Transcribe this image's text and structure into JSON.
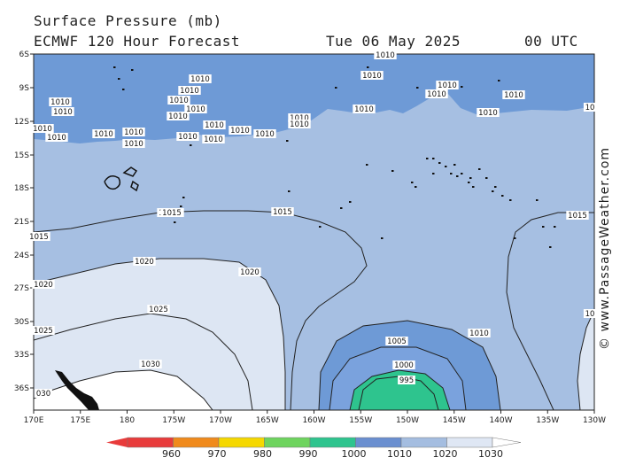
{
  "header": {
    "title": "Surface Pressure (mb)",
    "model": "ECMWF 120 Hour Forecast",
    "date": "Tue 06 May 2025",
    "time": "00 UTC"
  },
  "watermark": "© www.PassageWeather.com",
  "axes": {
    "lat_labels": [
      "6S",
      "9S",
      "12S",
      "15S",
      "18S",
      "21S",
      "24S",
      "27S",
      "30S",
      "33S",
      "36S"
    ],
    "lon_labels": [
      "170E",
      "175E",
      "180",
      "175W",
      "170W",
      "165W",
      "160W",
      "155W",
      "150W",
      "145W",
      "140W",
      "135W",
      "130W"
    ]
  },
  "legend": {
    "labels": [
      "960",
      "970",
      "980",
      "990",
      "1000",
      "1010",
      "1020",
      "1030"
    ],
    "colors": [
      "#e83b3b",
      "#f08a1c",
      "#f5d800",
      "#6ed45e",
      "#2ec48e",
      "#6a8fd0",
      "#a4bde0",
      "#dfe7f4"
    ]
  },
  "map": {
    "colors": {
      "lt1010": "#6e9ad6",
      "b1010_1015": "#a6bfe2",
      "b1015_1020": "#a6bfe2",
      "b1020_1030": "#dde6f3",
      "gt1030": "#ffffff",
      "lt1000": "#7aa2dd",
      "lt995": "#2ec48e",
      "land": "#111111"
    },
    "contour_labels": [
      "1010",
      "1010",
      "1010",
      "1010",
      "1010",
      "1010",
      "1010",
      "1010",
      "1010",
      "1010",
      "1010",
      "1010",
      "1010",
      "1010",
      "1010",
      "1010",
      "1010",
      "1010",
      "1010",
      "1010",
      "1010",
      "1010",
      "1010",
      "1010",
      "1010",
      "1010",
      "1010",
      "1010",
      "1015",
      "1015",
      "1015",
      "1015",
      "1020",
      "1020",
      "1020",
      "1025",
      "1025",
      "1030",
      "030",
      "1010",
      "1005",
      "1000",
      "995",
      "10",
      "10"
    ]
  }
}
